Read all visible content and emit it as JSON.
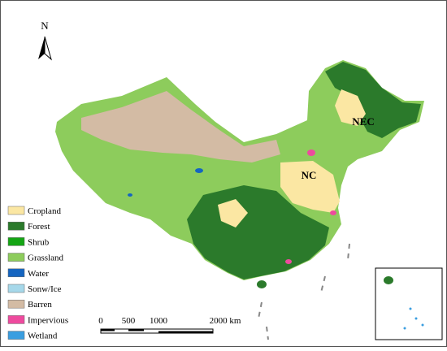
{
  "north_label": "N",
  "region_labels": [
    "NEC",
    "NC"
  ],
  "legend": [
    {
      "label": "Cropland",
      "color": "#fbe7a3"
    },
    {
      "label": "Forest",
      "color": "#2b7a2b"
    },
    {
      "label": "Shrub",
      "color": "#14a514"
    },
    {
      "label": "Grassland",
      "color": "#8dcc5c"
    },
    {
      "label": "Water",
      "color": "#1565c0"
    },
    {
      "label": "Sonw/Ice",
      "color": "#a6d8ea"
    },
    {
      "label": "Barren",
      "color": "#d3bba4"
    },
    {
      "label": "Impervious",
      "color": "#ee4a9e"
    },
    {
      "label": "Wetland",
      "color": "#3a9ee0"
    }
  ],
  "scale_bar": {
    "labels": [
      "0",
      "500",
      "1000",
      "2000 km"
    ]
  }
}
